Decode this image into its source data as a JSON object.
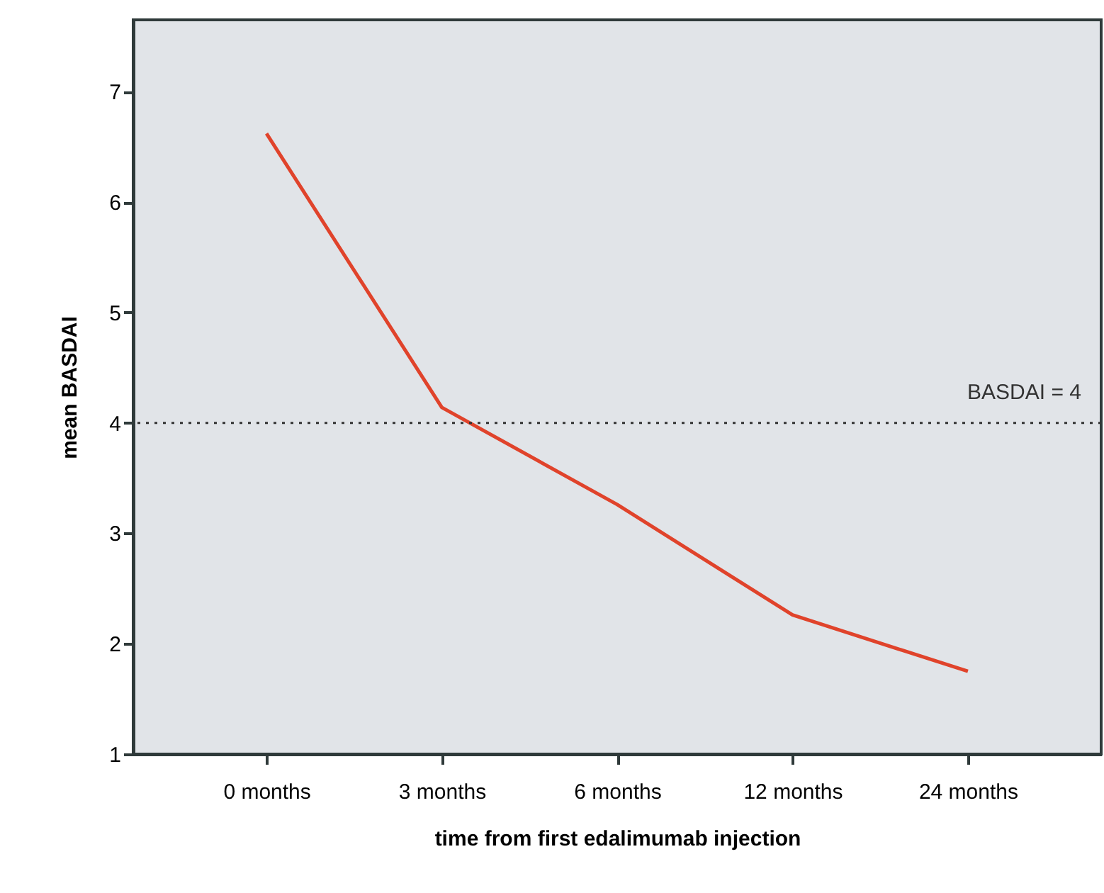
{
  "chart_data": {
    "type": "line",
    "xlabel": "time from first edalimumab injection",
    "ylabel": "mean BASDAI",
    "categories": [
      "0 months",
      "3 months",
      "6 months",
      "12 months",
      "24 months"
    ],
    "series": [
      {
        "color": "#e0432b",
        "values": [
          6.62,
          4.14,
          3.26,
          2.26,
          1.75
        ]
      }
    ],
    "ylim": [
      1,
      7.65
    ],
    "yticks": [
      1,
      2,
      3,
      4,
      5,
      6,
      7
    ],
    "ref_lines": [
      {
        "axis": "y",
        "value": 4,
        "label": "BASDAI = 4",
        "line_style": "dotted",
        "color": "#333333"
      }
    ],
    "grid": false,
    "marker": "none",
    "line_style": "solid"
  }
}
